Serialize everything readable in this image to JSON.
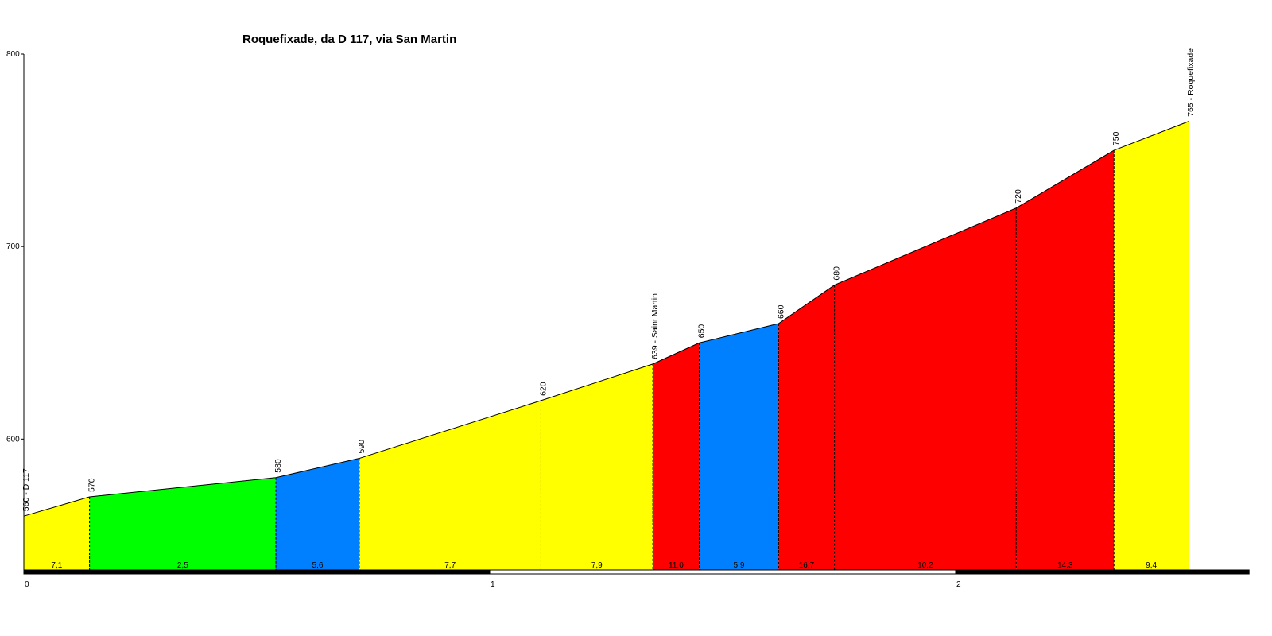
{
  "chart_data": {
    "type": "area",
    "title": "Roquefixade, da D 117, via San Martin",
    "xlabel": "",
    "ylabel": "",
    "xlim": [
      0,
      2.63
    ],
    "ylim": [
      532,
      800
    ],
    "y_ticks": [
      600,
      700,
      800
    ],
    "x_ticks": [
      0,
      1,
      2
    ],
    "y_tick_labels": [
      "600",
      "700",
      "800"
    ],
    "x_tick_labels": [
      "0",
      "1",
      "2"
    ],
    "profile_points": [
      {
        "x": 0.0,
        "y": 560,
        "label": "560 - D 117"
      },
      {
        "x": 0.141,
        "y": 570,
        "label": "570"
      },
      {
        "x": 0.541,
        "y": 580,
        "label": "580"
      },
      {
        "x": 0.72,
        "y": 590,
        "label": "590"
      },
      {
        "x": 1.11,
        "y": 620,
        "label": "620"
      },
      {
        "x": 1.35,
        "y": 639,
        "label": "639 - Saint Martin"
      },
      {
        "x": 1.45,
        "y": 650,
        "label": "650"
      },
      {
        "x": 1.62,
        "y": 660,
        "label": "660"
      },
      {
        "x": 1.74,
        "y": 680,
        "label": "680"
      },
      {
        "x": 2.13,
        "y": 720,
        "label": "720"
      },
      {
        "x": 2.34,
        "y": 750,
        "label": "750"
      },
      {
        "x": 2.5,
        "y": 765,
        "label": "765 - Roquefixade"
      }
    ],
    "segments": [
      {
        "from": 0.0,
        "to": 0.141,
        "gradient": "7,1",
        "color": "#ffff00"
      },
      {
        "from": 0.141,
        "to": 0.541,
        "gradient": "2,5",
        "color": "#00ff00"
      },
      {
        "from": 0.541,
        "to": 0.72,
        "gradient": "5,6",
        "color": "#0080ff"
      },
      {
        "from": 0.72,
        "to": 1.11,
        "gradient": "7,7",
        "color": "#ffff00"
      },
      {
        "from": 1.11,
        "to": 1.35,
        "gradient": "7,9",
        "color": "#ffff00"
      },
      {
        "from": 1.35,
        "to": 1.45,
        "gradient": "11,0",
        "color": "#ff0000"
      },
      {
        "from": 1.45,
        "to": 1.62,
        "gradient": "5,9",
        "color": "#0080ff"
      },
      {
        "from": 1.62,
        "to": 1.74,
        "gradient": "16,7",
        "color": "#ff0000"
      },
      {
        "from": 1.74,
        "to": 2.13,
        "gradient": "10,2",
        "color": "#ff0000"
      },
      {
        "from": 2.13,
        "to": 2.34,
        "gradient": "14,3",
        "color": "#ff0000"
      },
      {
        "from": 2.34,
        "to": 2.5,
        "gradient": "9,4",
        "color": "#ffff00"
      }
    ],
    "km_bar": [
      {
        "from": 0,
        "to": 1,
        "color": "#000000"
      },
      {
        "from": 1,
        "to": 2,
        "color": "#ffffff"
      },
      {
        "from": 2,
        "to": 2.63,
        "color": "#000000"
      }
    ],
    "grid": false,
    "legend": "none"
  }
}
